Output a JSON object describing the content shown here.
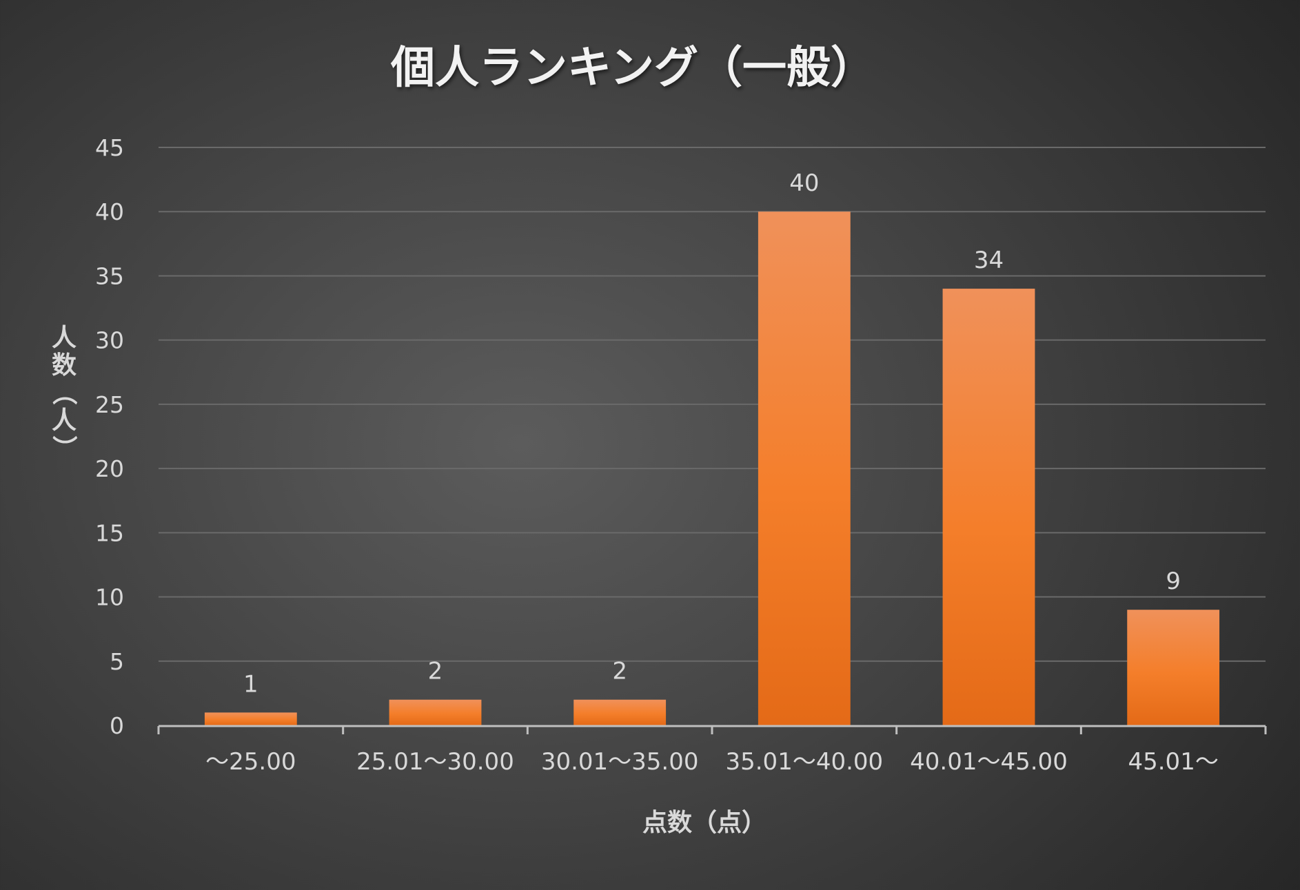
{
  "chart_data": {
    "type": "bar",
    "title": "個人ランキング（一般）",
    "xlabel": "点数（点）",
    "ylabel": "人数（人）",
    "categories": [
      "～25.00",
      "25.01～30.00",
      "30.01～35.00",
      "35.01～40.00",
      "40.01～45.00",
      "45.01～"
    ],
    "values": [
      1,
      2,
      2,
      40,
      34,
      9
    ],
    "data_labels": [
      "1",
      "2",
      "2",
      "40",
      "34",
      "9"
    ],
    "ylim": [
      0,
      45
    ],
    "yticks": [
      0,
      5,
      10,
      15,
      20,
      25,
      30,
      35,
      40,
      45
    ],
    "ytick_labels": [
      "0",
      "5",
      "10",
      "15",
      "20",
      "25",
      "30",
      "35",
      "40",
      "45"
    ],
    "grid": true,
    "legend": "none",
    "colors": {
      "bar_top": "#f0915a",
      "bar_mid": "#f47e2a",
      "bar_bottom": "#e46a17",
      "text": "#d9d9d9",
      "title": "#f2f2f2",
      "grid": "#6a6a6a",
      "axis": "#bfbfbf"
    }
  }
}
